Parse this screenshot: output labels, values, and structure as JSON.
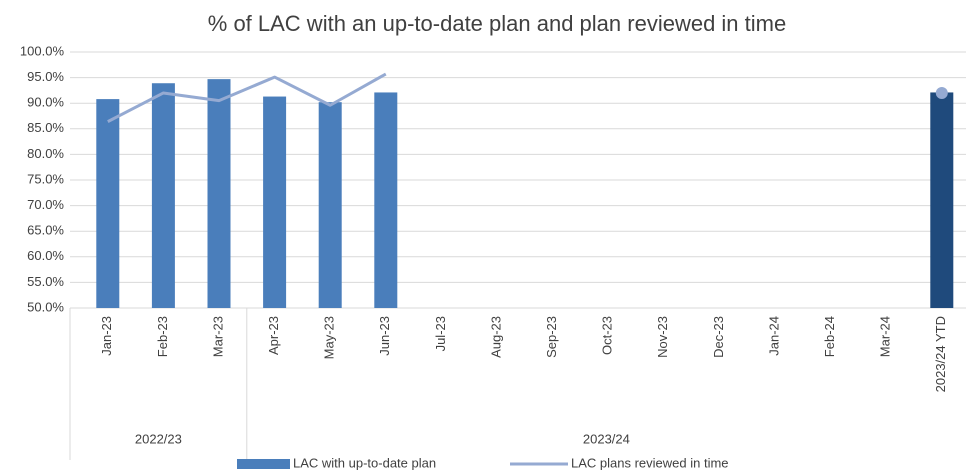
{
  "chart_data": {
    "type": "bar-line",
    "title": "% of LAC with an up-to-date plan and plan reviewed in time",
    "categories": [
      "Jan-23",
      "Feb-23",
      "Mar-23",
      "Apr-23",
      "May-23",
      "Jun-23",
      "Jul-23",
      "Aug-23",
      "Sep-23",
      "Oct-23",
      "Nov-23",
      "Dec-23",
      "Jan-24",
      "Feb-24",
      "Mar-24",
      "2023/24 YTD"
    ],
    "groups": [
      {
        "label": "2022/23",
        "size": 3
      },
      {
        "label": "2023/24",
        "size": 13
      }
    ],
    "series": [
      {
        "name": "LAC with up-to-date plan",
        "type": "bar",
        "color": "#4a7ebb",
        "colors": [
          "#4a7ebb",
          "#4a7ebb",
          "#4a7ebb",
          "#4a7ebb",
          "#4a7ebb",
          "#4a7ebb",
          "#4a7ebb",
          "#4a7ebb",
          "#4a7ebb",
          "#4a7ebb",
          "#4a7ebb",
          "#4a7ebb",
          "#4a7ebb",
          "#4a7ebb",
          "#4a7ebb",
          "#1f4a7c"
        ],
        "values": [
          90.8,
          93.9,
          94.7,
          91.3,
          90.2,
          92.1,
          null,
          null,
          null,
          null,
          null,
          null,
          null,
          null,
          null,
          92.1
        ]
      },
      {
        "name": "LAC plans reviewed in time",
        "type": "line",
        "color": "#95aad2",
        "values": [
          86.4,
          92.0,
          90.5,
          95.1,
          89.6,
          95.7,
          null,
          null,
          null,
          null,
          null,
          null,
          null,
          null,
          null,
          92.0
        ]
      }
    ],
    "ylim": [
      50,
      100
    ],
    "yticks": [
      {
        "value": 50,
        "label": "50.0%"
      },
      {
        "value": 55,
        "label": "55.0%"
      },
      {
        "value": 60,
        "label": "60.0%"
      },
      {
        "value": 65,
        "label": "65.0%"
      },
      {
        "value": 70,
        "label": "70.0%"
      },
      {
        "value": 75,
        "label": "75.0%"
      },
      {
        "value": 80,
        "label": "80.0%"
      },
      {
        "value": 85,
        "label": "85.0%"
      },
      {
        "value": 90,
        "label": "90.0%"
      },
      {
        "value": 95,
        "label": "95.0%"
      },
      {
        "value": 100,
        "label": "100.0%"
      }
    ],
    "grid": true,
    "legend": "bottom"
  }
}
